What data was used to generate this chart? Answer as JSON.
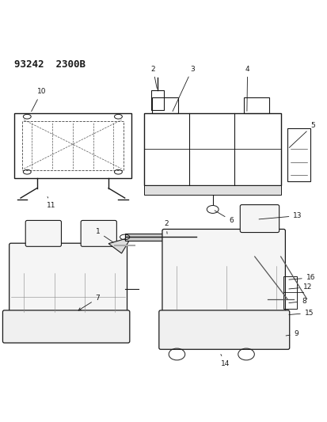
{
  "title": "93242  2300B",
  "background_color": "#ffffff",
  "line_color": "#1a1a1a",
  "text_color": "#1a1a1a",
  "fig_width": 4.14,
  "fig_height": 5.33,
  "dpi": 100
}
